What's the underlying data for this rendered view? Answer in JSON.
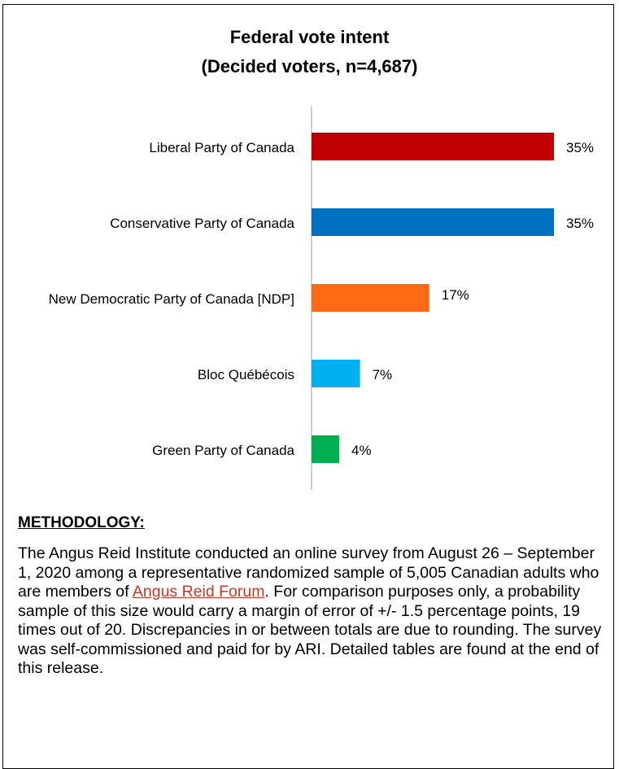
{
  "chart_data": {
    "type": "bar",
    "orientation": "horizontal",
    "title": "Federal vote intent",
    "subtitle": "(Decided voters, n=4,687)",
    "categories": [
      "Liberal Party of Canada",
      "Conservative Party of Canada",
      "New Democratic Party of Canada [NDP]",
      "Bloc Québécois",
      "Green Party of Canada"
    ],
    "series": [
      {
        "name": "Federal vote intent",
        "values": [
          35,
          35,
          17,
          7,
          4
        ],
        "value_labels": [
          "35%",
          "35%",
          "17%",
          "7%",
          "4%"
        ],
        "colors": [
          "#c00000",
          "#0070c0",
          "#ff6a13",
          "#00b0f0",
          "#00b050"
        ]
      }
    ]
  },
  "methodology": {
    "heading": "METHODOLOGY:",
    "text_before": "The Angus Reid Institute conducted an online survey from August 26 – September 1, 2020 among a representative randomized sample of 5,005 Canadian adults who are members of ",
    "link": "Angus Reid Forum",
    "text_after": ". For comparison purposes only, a probability sample of this size would carry a margin of error of +/- 1.5 percentage points, 19 times out of 20. Discrepancies in or between totals are due to rounding. The survey was self-commissioned and paid for by ARI. Detailed tables are found at the end of this release."
  }
}
